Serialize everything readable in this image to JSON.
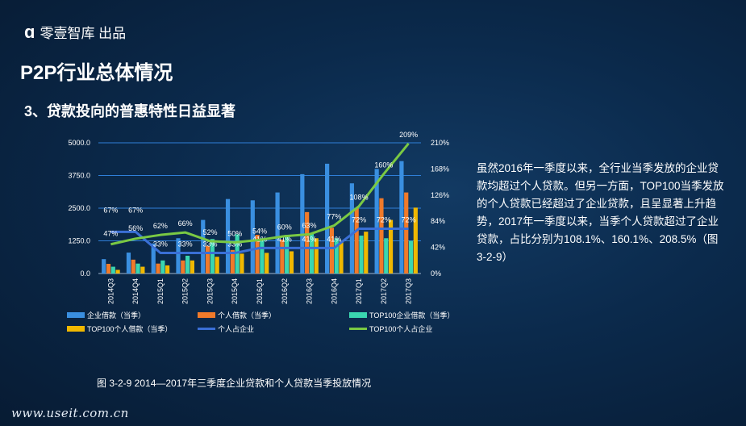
{
  "brand": {
    "name": "零壹智库 出品",
    "logo_icon": "a-logo-icon"
  },
  "page": {
    "title": "P2P行业总体情况",
    "subtitle": "3、贷款投向的普惠特性日益显著",
    "description": "虽然2016年一季度以来，全行业当季发放的企业贷款均超过个人贷款。但另一方面，TOP100当季发放的个人贷款已经超过了企业贷款，且呈显著上升趋势，2017年一季度以来，当季个人贷款超过了企业贷款，占比分别为108.1%、160.1%、208.5%（图3-2-9）",
    "caption": "图 3-2-9  2014—2017年三季度企业贷款和个人贷款当季投放情况",
    "site": "www.useit.com.cn"
  },
  "chart_data": {
    "type": "bar",
    "categories": [
      "2014Q3",
      "2014Q4",
      "2015Q1",
      "2015Q2",
      "2015Q3",
      "2015Q4",
      "2016Q1",
      "2016Q2",
      "2016Q3",
      "2016Q4",
      "2017Q1",
      "2017Q2",
      "2017Q3"
    ],
    "y_left": {
      "ylim": [
        0,
        5000
      ],
      "ticks": [
        "0.0",
        "1250.0",
        "2500.0",
        "3750.0",
        "5000.0"
      ]
    },
    "y_right": {
      "ylim": [
        0,
        2.1
      ],
      "ticks": [
        "0%",
        "42%",
        "84%",
        "126%",
        "168%",
        "210%"
      ]
    },
    "colors": {
      "enterprise": "#3a8fe0",
      "personal": "#f07a2a",
      "top_enterprise": "#3ad6b0",
      "top_personal": "#f0b800",
      "ratio": "#3a6fd6",
      "top_ratio": "#7ac943"
    },
    "series": [
      {
        "name": "企业借款（当季）",
        "kind": "bar",
        "values": [
          550,
          800,
          1150,
          1350,
          2050,
          2850,
          2800,
          3100,
          3800,
          4200,
          3450,
          4000,
          4300
        ]
      },
      {
        "name": "个人借款（当季）",
        "kind": "bar",
        "values": [
          370,
          530,
          380,
          500,
          1050,
          900,
          1480,
          1300,
          2350,
          1750,
          2500,
          2880,
          3100
        ]
      },
      {
        "name": "TOP100企业借款（当季）",
        "kind": "bar",
        "values": [
          260,
          380,
          500,
          680,
          1320,
          1500,
          1350,
          1480,
          1550,
          1350,
          1450,
          1350,
          1250
        ]
      },
      {
        "name": "TOP100个人借款（当季）",
        "kind": "bar",
        "values": [
          140,
          260,
          310,
          500,
          640,
          760,
          790,
          850,
          1350,
          1200,
          1600,
          2050,
          2520
        ]
      },
      {
        "name": "个人占企业",
        "kind": "line",
        "values": [
          0.67,
          0.67,
          0.33,
          0.33,
          0.33,
          0.33,
          0.41,
          0.41,
          0.41,
          0.41,
          0.72,
          0.72,
          0.72
        ],
        "labels": [
          "67%",
          "67%",
          "33%",
          "33%",
          "33%",
          "33%",
          "41%",
          "41%",
          "41%",
          "41%",
          "72%",
          "72%",
          "72%"
        ]
      },
      {
        "name": "TOP100个人占企业",
        "kind": "line",
        "values": [
          0.47,
          0.56,
          0.62,
          0.66,
          0.52,
          0.5,
          0.54,
          0.6,
          0.63,
          0.77,
          1.08,
          1.6,
          2.09
        ],
        "labels": [
          "47%",
          "56%",
          "62%",
          "66%",
          "52%",
          "50%",
          "54%",
          "60%",
          "63%",
          "77%",
          "108%",
          "160%",
          "209%"
        ]
      }
    ]
  }
}
